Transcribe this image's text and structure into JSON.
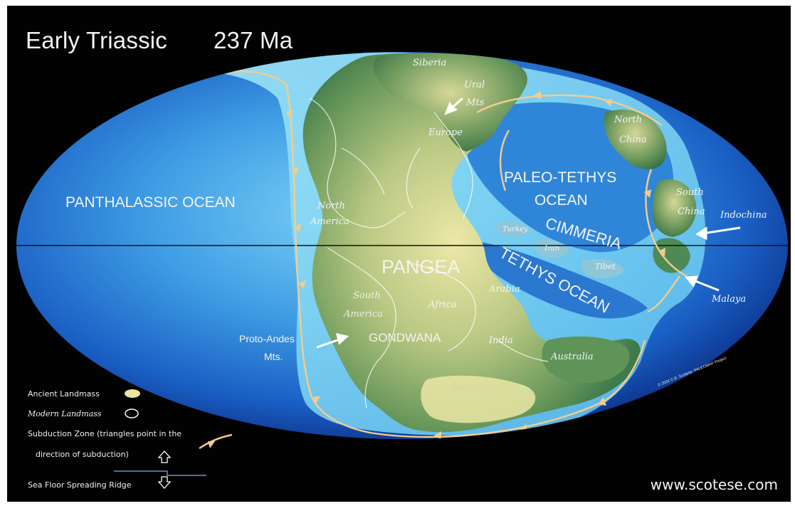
{
  "header": {
    "title": "Early Triassic",
    "age": "237 Ma"
  },
  "credit": {
    "website": "www.scotese.com",
    "copyright": "© 2002 C.R. Scotese, PALEOMAP Project"
  },
  "colors": {
    "ocean_light": "#6cc7f2",
    "ocean_deep": "#0d3d9c",
    "land_lowland": "#e9e6a2",
    "land_upland": "#3f7a46",
    "subduction": "#f1c98a",
    "background": "#020202"
  },
  "labels": {
    "panthalassic": "PANTHALASSIC OCEAN",
    "paleo_tethys_1": "PALEO-TETHYS",
    "paleo_tethys_2": "OCEAN",
    "cimmeria": "CIMMERIA",
    "tethys": "TETHYS OCEAN",
    "pangea": "PANGEA",
    "gondwana": "GONDWANA",
    "siberia": "Siberia",
    "ural_1": "Ural",
    "ural_2": "Mts",
    "europe": "Europe",
    "north_china_1": "North",
    "north_china_2": "China",
    "south_china_1": "South",
    "south_china_2": "China",
    "indochina": "Indochina",
    "malaya": "Malaya",
    "north_america_1": "North",
    "north_america_2": "America",
    "turkey": "Turkey",
    "iran": "Iran",
    "tibet": "Tibet",
    "arabia": "Arabia",
    "south_america_1": "South",
    "south_america_2": "America",
    "africa": "Africa",
    "india": "India",
    "australia": "Australia",
    "antarctica": "Antarctica",
    "proto_andes_1": "Proto-Andes",
    "proto_andes_2": "Mts."
  },
  "legend": {
    "ancient": "Ancient Landmass",
    "modern": "Modern Landmass",
    "subduction_1": "Subduction Zone  (triangles point in the",
    "subduction_2": "direction of subduction)",
    "ridge": "Sea Floor Spreading Ridge"
  }
}
